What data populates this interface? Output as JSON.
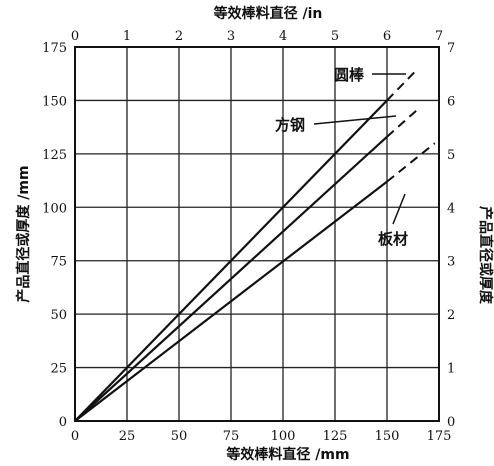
{
  "chart_data": {
    "type": "line",
    "xlabel_bottom": "等效棒料直径 /mm",
    "xlabel_top": "等效棒料直径 /in",
    "ylabel_left": "产品直径或厚度 /mm",
    "ylabel_right": "产品直径或厚度",
    "xlim_mm": [
      0,
      175
    ],
    "ylim_mm": [
      0,
      175
    ],
    "xlim_in": [
      0,
      7
    ],
    "ylim_in": [
      0,
      7
    ],
    "x_ticks_mm": [
      "0",
      "25",
      "50",
      "75",
      "100",
      "125",
      "150",
      "175"
    ],
    "y_ticks_mm": [
      "0",
      "25",
      "50",
      "75",
      "100",
      "125",
      "150",
      "175"
    ],
    "x_ticks_in": [
      "0",
      "1",
      "2",
      "3",
      "4",
      "5",
      "6",
      "7"
    ],
    "y_ticks_in": [
      "0",
      "1",
      "2",
      "3",
      "4",
      "5",
      "6",
      "7"
    ],
    "grid": true,
    "series": [
      {
        "name": "圆棒",
        "x": [
          0,
          150
        ],
        "y": [
          0,
          150
        ],
        "extension_x": [
          150,
          165
        ],
        "extension_y": [
          150,
          165
        ]
      },
      {
        "name": "方钢",
        "x": [
          0,
          150
        ],
        "y": [
          0,
          133
        ],
        "extension_x": [
          150,
          165
        ],
        "extension_y": [
          133,
          146
        ]
      },
      {
        "name": "板材",
        "x": [
          0,
          150
        ],
        "y": [
          0,
          112
        ],
        "extension_x": [
          150,
          173
        ],
        "extension_y": [
          112,
          130
        ]
      }
    ]
  }
}
